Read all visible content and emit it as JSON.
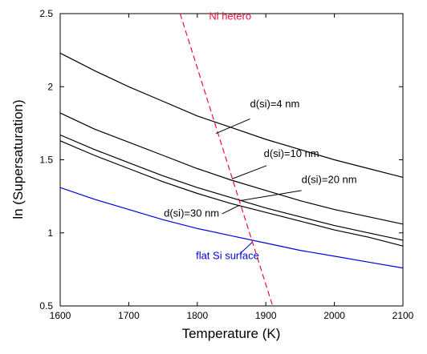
{
  "chart_data": {
    "type": "line",
    "xlabel": "Temperature (K)",
    "ylabel": "ln (Supersaturation)",
    "xlim": [
      1600,
      2100
    ],
    "ylim": [
      0.5,
      2.5
    ],
    "xticks": [
      1600,
      1700,
      1800,
      1900,
      2000,
      2100
    ],
    "xtick_labels": [
      "1600",
      "1700",
      "1800",
      "1900",
      "2000",
      "2100"
    ],
    "yticks": [
      0.5,
      1,
      1.5,
      2,
      2.5
    ],
    "ytick_labels": [
      "0.5",
      "1",
      "1.5",
      "2",
      "2.5"
    ],
    "grid": false,
    "series": [
      {
        "name": "d(si)=4 nm",
        "color": "#000000",
        "dash": "solid",
        "x": [
          1600,
          1650,
          1700,
          1750,
          1800,
          1850,
          1900,
          1950,
          2000,
          2050,
          2100
        ],
        "y": [
          2.23,
          2.11,
          2.0,
          1.9,
          1.8,
          1.72,
          1.64,
          1.57,
          1.5,
          1.44,
          1.38
        ]
      },
      {
        "name": "d(si)=10 nm",
        "color": "#000000",
        "dash": "solid",
        "x": [
          1600,
          1650,
          1700,
          1750,
          1800,
          1850,
          1900,
          1950,
          2000,
          2050,
          2100
        ],
        "y": [
          1.82,
          1.71,
          1.62,
          1.53,
          1.44,
          1.36,
          1.29,
          1.22,
          1.16,
          1.11,
          1.06
        ]
      },
      {
        "name": "d(si)=20 nm",
        "color": "#000000",
        "dash": "solid",
        "x": [
          1600,
          1650,
          1700,
          1750,
          1800,
          1850,
          1900,
          1950,
          2000,
          2050,
          2100
        ],
        "y": [
          1.67,
          1.57,
          1.48,
          1.39,
          1.31,
          1.24,
          1.17,
          1.11,
          1.05,
          1.0,
          0.95
        ]
      },
      {
        "name": "d(si)=30 nm",
        "color": "#000000",
        "dash": "solid",
        "x": [
          1600,
          1650,
          1700,
          1750,
          1800,
          1850,
          1900,
          1950,
          2000,
          2050,
          2100
        ],
        "y": [
          1.63,
          1.53,
          1.44,
          1.35,
          1.27,
          1.2,
          1.14,
          1.08,
          1.02,
          0.97,
          0.91
        ]
      },
      {
        "name": "flat Si surface",
        "color": "#0000dd",
        "dash": "solid",
        "x": [
          1600,
          1650,
          1700,
          1750,
          1800,
          1850,
          1900,
          1950,
          2000,
          2050,
          2100
        ],
        "y": [
          1.31,
          1.23,
          1.16,
          1.09,
          1.03,
          0.98,
          0.93,
          0.88,
          0.84,
          0.8,
          0.76
        ]
      },
      {
        "name": "Ni hetero",
        "color": "#e8103a",
        "dash": "dashed",
        "x": [
          1775,
          1910
        ],
        "y": [
          2.5,
          0.5
        ]
      }
    ],
    "annotations": [
      {
        "text": "Ni hetero",
        "series": 5,
        "color": "#e8103a"
      },
      {
        "text": "d(si)=4 nm",
        "series": 0,
        "color": "#000000"
      },
      {
        "text": "d(si)=10 nm",
        "series": 1,
        "color": "#000000"
      },
      {
        "text": "d(si)=20 nm",
        "series": 2,
        "color": "#000000"
      },
      {
        "text": "d(si)=30 nm",
        "series": 3,
        "color": "#000000"
      },
      {
        "text": "flat Si surface",
        "series": 4,
        "color": "#0000dd"
      }
    ]
  }
}
